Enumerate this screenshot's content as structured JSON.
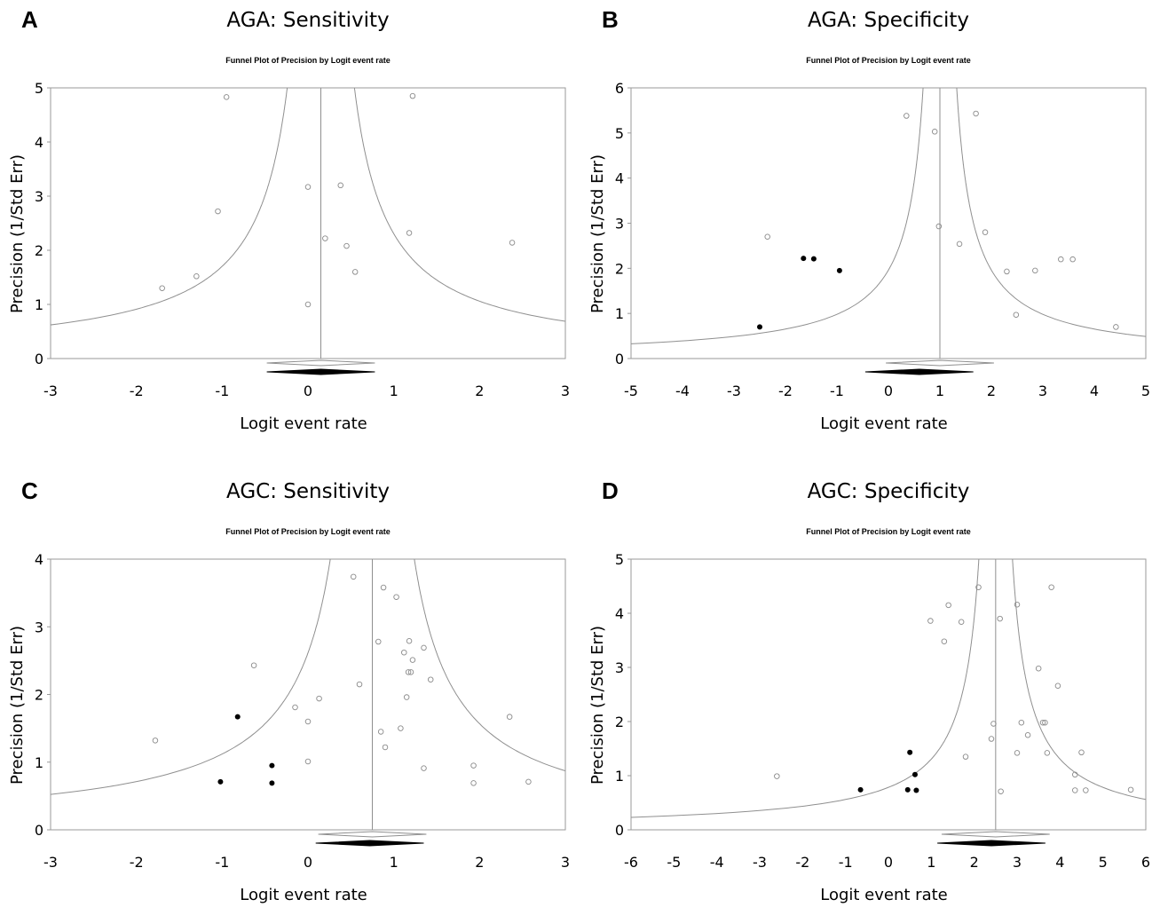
{
  "chart_data": [
    {
      "panel_letter": "A",
      "panel_title": "AGA: Sensitivity",
      "title": "Funnel Plot of Precision by Logit event rate",
      "type": "scatter",
      "xlabel": "Logit event rate",
      "ylabel": "Precision (1/Std Err)",
      "xlim": [
        -3,
        3
      ],
      "ylim": [
        0,
        5
      ],
      "xticks": [
        -3,
        -2,
        -1,
        0,
        1,
        2,
        3
      ],
      "yticks": [
        0,
        1,
        2,
        3,
        4,
        5
      ],
      "summary_estimate": 0.15,
      "adjusted_estimate": 0.15,
      "observed_studies": [
        {
          "x": -1.7,
          "y": 1.3
        },
        {
          "x": -1.3,
          "y": 1.52
        },
        {
          "x": -1.05,
          "y": 2.72
        },
        {
          "x": -0.95,
          "y": 4.83
        },
        {
          "x": 0.0,
          "y": 3.17
        },
        {
          "x": 0.0,
          "y": 1.0
        },
        {
          "x": 0.2,
          "y": 2.22
        },
        {
          "x": 0.38,
          "y": 3.2
        },
        {
          "x": 0.45,
          "y": 2.08
        },
        {
          "x": 0.55,
          "y": 1.6
        },
        {
          "x": 1.18,
          "y": 2.32
        },
        {
          "x": 1.22,
          "y": 4.85
        },
        {
          "x": 2.38,
          "y": 2.14
        }
      ],
      "imputed_studies": []
    },
    {
      "panel_letter": "B",
      "panel_title": "AGA: Specificity",
      "title": "Funnel Plot of Precision by Logit event rate",
      "type": "scatter",
      "xlabel": "Logit event rate",
      "ylabel": "Precision (1/Std Err)",
      "xlim": [
        -5,
        5
      ],
      "ylim": [
        0,
        6
      ],
      "xticks": [
        -5,
        -4,
        -3,
        -2,
        -1,
        0,
        1,
        2,
        3,
        4,
        5
      ],
      "yticks": [
        0,
        1,
        2,
        3,
        4,
        5,
        6
      ],
      "summary_estimate": 1.0,
      "adjusted_estimate": 0.6,
      "observed_studies": [
        {
          "x": -2.35,
          "y": 2.7
        },
        {
          "x": 0.35,
          "y": 5.38
        },
        {
          "x": 0.9,
          "y": 5.03
        },
        {
          "x": 0.98,
          "y": 2.93
        },
        {
          "x": 1.38,
          "y": 2.54
        },
        {
          "x": 1.7,
          "y": 5.43
        },
        {
          "x": 1.88,
          "y": 2.8
        },
        {
          "x": 2.3,
          "y": 1.93
        },
        {
          "x": 2.48,
          "y": 0.97
        },
        {
          "x": 2.85,
          "y": 1.95
        },
        {
          "x": 3.35,
          "y": 2.2
        },
        {
          "x": 3.58,
          "y": 2.2
        },
        {
          "x": 4.42,
          "y": 0.7
        }
      ],
      "imputed_studies": [
        {
          "x": -2.5,
          "y": 0.7
        },
        {
          "x": -1.65,
          "y": 2.22
        },
        {
          "x": -1.45,
          "y": 2.21
        },
        {
          "x": -0.95,
          "y": 1.95
        }
      ]
    },
    {
      "panel_letter": "C",
      "panel_title": "AGC: Sensitivity",
      "title": "Funnel Plot of Precision by Logit event rate",
      "type": "scatter",
      "xlabel": "Logit event rate",
      "ylabel": "Precision (1/Std Err)",
      "xlim": [
        -3,
        3
      ],
      "ylim": [
        0,
        4
      ],
      "xticks": [
        -3,
        -2,
        -1,
        0,
        1,
        2,
        3
      ],
      "yticks": [
        0,
        1,
        2,
        3,
        4
      ],
      "summary_estimate": 0.75,
      "adjusted_estimate": 0.72,
      "observed_studies": [
        {
          "x": -1.78,
          "y": 1.32
        },
        {
          "x": -0.63,
          "y": 2.43
        },
        {
          "x": -0.15,
          "y": 1.81
        },
        {
          "x": 0.0,
          "y": 1.6
        },
        {
          "x": 0.0,
          "y": 1.01
        },
        {
          "x": 0.13,
          "y": 1.94
        },
        {
          "x": 0.53,
          "y": 3.74
        },
        {
          "x": 0.6,
          "y": 2.15
        },
        {
          "x": 0.82,
          "y": 2.78
        },
        {
          "x": 0.85,
          "y": 1.45
        },
        {
          "x": 0.88,
          "y": 3.58
        },
        {
          "x": 0.9,
          "y": 1.22
        },
        {
          "x": 1.03,
          "y": 3.44
        },
        {
          "x": 1.08,
          "y": 1.5
        },
        {
          "x": 1.12,
          "y": 2.62
        },
        {
          "x": 1.15,
          "y": 1.96
        },
        {
          "x": 1.17,
          "y": 2.33
        },
        {
          "x": 1.18,
          "y": 2.79
        },
        {
          "x": 1.2,
          "y": 2.33
        },
        {
          "x": 1.22,
          "y": 2.51
        },
        {
          "x": 1.35,
          "y": 2.69
        },
        {
          "x": 1.35,
          "y": 0.91
        },
        {
          "x": 1.43,
          "y": 2.22
        },
        {
          "x": 1.93,
          "y": 0.95
        },
        {
          "x": 1.93,
          "y": 0.69
        },
        {
          "x": 2.35,
          "y": 1.67
        },
        {
          "x": 2.57,
          "y": 0.71
        }
      ],
      "imputed_studies": [
        {
          "x": -1.02,
          "y": 0.71
        },
        {
          "x": -0.82,
          "y": 1.67
        },
        {
          "x": -0.42,
          "y": 0.95
        },
        {
          "x": -0.42,
          "y": 0.69
        }
      ]
    },
    {
      "panel_letter": "D",
      "panel_title": "AGC: Specificity",
      "title": "Funnel Plot of Precision by Logit event rate",
      "type": "scatter",
      "xlabel": "Logit event rate",
      "ylabel": "Precision (1/Std Err)",
      "xlim": [
        -6,
        6
      ],
      "ylim": [
        0,
        5
      ],
      "xticks": [
        -6,
        -5,
        -4,
        -3,
        -2,
        -1,
        0,
        1,
        2,
        3,
        4,
        5,
        6
      ],
      "yticks": [
        0,
        1,
        2,
        3,
        4,
        5
      ],
      "summary_estimate": 2.5,
      "adjusted_estimate": 2.4,
      "observed_studies": [
        {
          "x": -2.6,
          "y": 0.99
        },
        {
          "x": 0.98,
          "y": 3.86
        },
        {
          "x": 1.3,
          "y": 3.48
        },
        {
          "x": 1.4,
          "y": 4.15
        },
        {
          "x": 1.7,
          "y": 3.84
        },
        {
          "x": 1.8,
          "y": 1.35
        },
        {
          "x": 2.1,
          "y": 4.48
        },
        {
          "x": 2.4,
          "y": 1.68
        },
        {
          "x": 2.45,
          "y": 1.96
        },
        {
          "x": 2.6,
          "y": 3.9
        },
        {
          "x": 2.62,
          "y": 0.71
        },
        {
          "x": 3.0,
          "y": 4.16
        },
        {
          "x": 3.0,
          "y": 1.42
        },
        {
          "x": 3.1,
          "y": 1.98
        },
        {
          "x": 3.25,
          "y": 1.75
        },
        {
          "x": 3.5,
          "y": 2.98
        },
        {
          "x": 3.6,
          "y": 1.98
        },
        {
          "x": 3.65,
          "y": 1.98
        },
        {
          "x": 3.7,
          "y": 1.42
        },
        {
          "x": 3.8,
          "y": 4.48
        },
        {
          "x": 3.95,
          "y": 2.66
        },
        {
          "x": 4.35,
          "y": 1.02
        },
        {
          "x": 4.35,
          "y": 0.73
        },
        {
          "x": 4.5,
          "y": 1.43
        },
        {
          "x": 4.6,
          "y": 0.73
        },
        {
          "x": 5.65,
          "y": 0.74
        }
      ],
      "imputed_studies": [
        {
          "x": -0.65,
          "y": 0.74
        },
        {
          "x": 0.45,
          "y": 0.74
        },
        {
          "x": 0.5,
          "y": 1.43
        },
        {
          "x": 0.62,
          "y": 1.02
        },
        {
          "x": 0.65,
          "y": 0.73
        }
      ]
    }
  ]
}
